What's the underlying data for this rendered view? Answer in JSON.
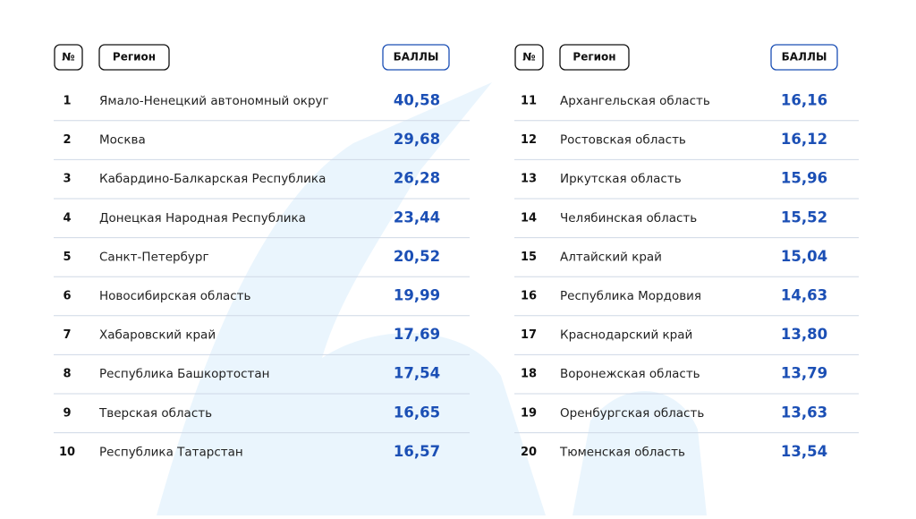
{
  "tables": [
    {
      "headers": [
        "№",
        "Регион",
        "БАЛЛЫ"
      ],
      "rows": [
        [
          "1",
          "Ямало-Ненецкий автономный округ",
          "40,58"
        ],
        [
          "2",
          "Москва",
          "29,68"
        ],
        [
          "3",
          "Кабардино-Балкарская Республика",
          "26,28"
        ],
        [
          "4",
          "Донецкая Народная Республика",
          "23,44"
        ],
        [
          "5",
          "Санкт-Петербург",
          "20,52"
        ],
        [
          "6",
          "Новосибирская область",
          "19,99"
        ],
        [
          "7",
          "Хабаровский край",
          "17,69"
        ],
        [
          "8",
          "Республика Башкортостан",
          "17,54"
        ],
        [
          "9",
          "Тверская область",
          "16,65"
        ],
        [
          "10",
          "Республика Татарстан",
          "16,57"
        ]
      ]
    },
    {
      "headers": [
        "№",
        "Регион",
        "БАЛЛЫ"
      ],
      "rows": [
        [
          "11",
          "Архангельская область",
          "16,16"
        ],
        [
          "12",
          "Ростовская область",
          "16,12"
        ],
        [
          "13",
          "Иркутская область",
          "15,96"
        ],
        [
          "14",
          "Челябинская область",
          "15,52"
        ],
        [
          "15",
          "Алтайский край",
          "15,04"
        ],
        [
          "16",
          "Республика Мордовия",
          "14,63"
        ],
        [
          "17",
          "Краснодарский край",
          "13,80"
        ],
        [
          "18",
          "Воронежская область",
          "13,79"
        ],
        [
          "19",
          "Оренбургская область",
          "13,63"
        ],
        [
          "20",
          "Тюменская область",
          "13,54"
        ]
      ]
    }
  ]
}
